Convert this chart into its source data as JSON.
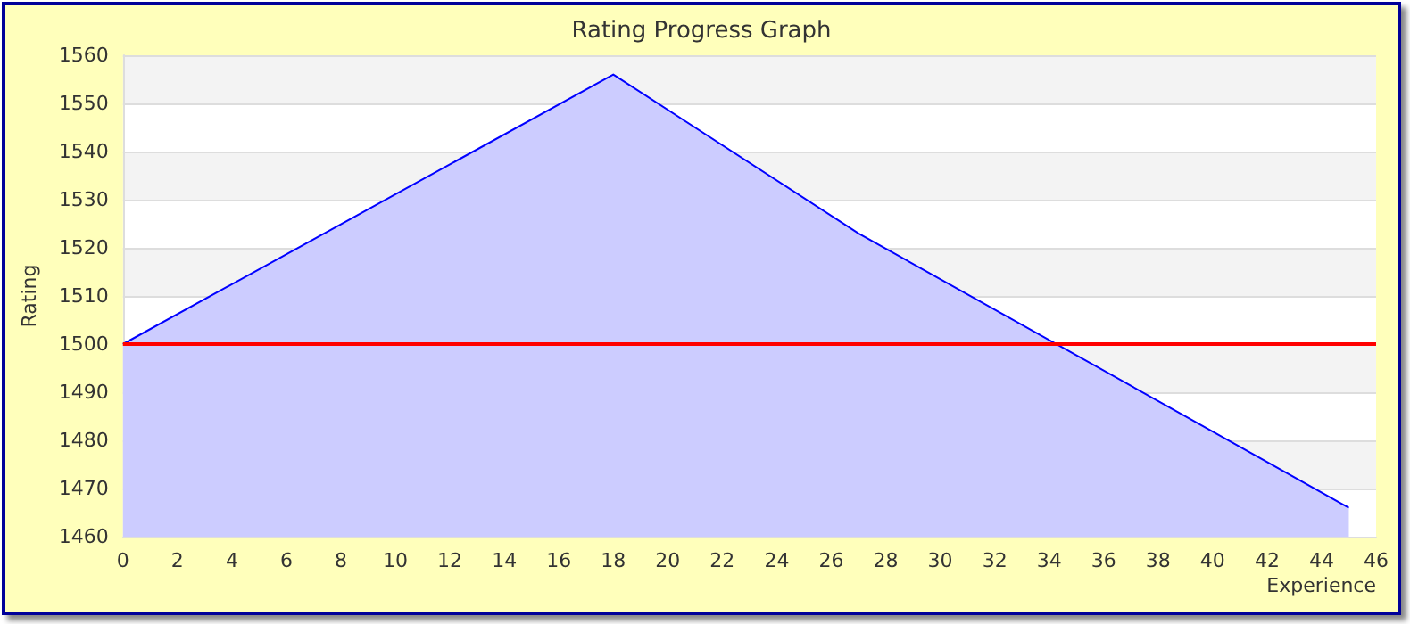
{
  "chart_data": {
    "type": "area",
    "title": "Rating Progress Graph",
    "xlabel": "Experience",
    "ylabel": "Rating",
    "x": [
      0,
      18,
      27,
      45
    ],
    "series": [
      {
        "color": "#0000ff",
        "values": [
          1500,
          1556,
          1523,
          1466
        ]
      }
    ],
    "xlim": [
      0,
      46
    ],
    "xticks": [
      0,
      2,
      4,
      6,
      8,
      10,
      12,
      14,
      16,
      18,
      20,
      22,
      24,
      26,
      28,
      30,
      32,
      34,
      36,
      38,
      40,
      42,
      44,
      46
    ],
    "ylim": [
      1460,
      1560
    ],
    "yticks": [
      1460,
      1470,
      1480,
      1490,
      1500,
      1510,
      1520,
      1530,
      1540,
      1550,
      1560
    ],
    "grid": "y",
    "marker": "none",
    "line_style": "solid",
    "ref_lines": [
      {
        "axis": "y",
        "value": 1500,
        "color": "#ff0000"
      }
    ]
  }
}
